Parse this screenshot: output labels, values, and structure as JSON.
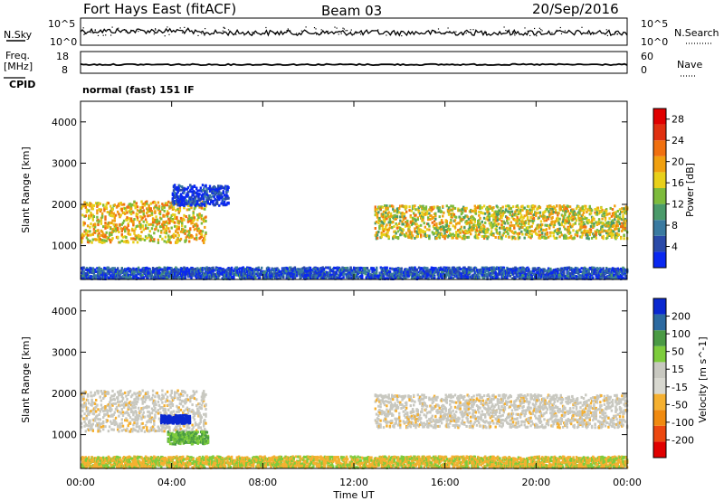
{
  "header": {
    "station": "Fort Hays East (fitACF)",
    "beam": "Beam 03",
    "date": "20/Sep/2016"
  },
  "labels": {
    "nsky": "N.Sky",
    "nsearch": "N.Search",
    "freq_line1": "Freq.",
    "freq_line2": "[MHz]",
    "nave": "Nave",
    "cpid": "CPID",
    "mode": "normal (fast) 151 IF",
    "tick_1e5": "10^5",
    "tick_1e0": "10^0",
    "tick_18": "18",
    "tick_8": "8",
    "tick_60": "60",
    "tick_0": "0"
  },
  "colors": {
    "power": [
      "#0a28f0",
      "#2a4aa8",
      "#3a7aa0",
      "#4a9a6a",
      "#7dbb3c",
      "#e8d01a",
      "#f0a010",
      "#f07010",
      "#e03010",
      "#e00000"
    ],
    "velocity": [
      "#e00000",
      "#ec4810",
      "#f08a10",
      "#f5b030",
      "#d8d8d0",
      "#c8c8c0",
      "#7dcc3c",
      "#4a9a44",
      "#2c6aa0",
      "#0a28d0"
    ],
    "ground_scatter": "#c8c8c0"
  },
  "chart_data": [
    {
      "type": "line",
      "name": "N.Sky",
      "ylabel": "N.Sky",
      "ylim": [
        0,
        5
      ],
      "y_scale": "log10",
      "y_ticks": [
        "10^0",
        "10^5"
      ],
      "x_range_hours": [
        0,
        24
      ],
      "approx_level_log10": 2.3,
      "series": [
        {
          "name": "N.Sky",
          "style": "solid"
        },
        {
          "name": "N.Search",
          "style": "dotted"
        }
      ]
    },
    {
      "type": "line",
      "name": "Freq / Nave",
      "ylabel": "Freq. [MHz]",
      "ylim_freq": [
        8,
        18
      ],
      "ylim_nave": [
        0,
        60
      ],
      "approx_freq_mhz": 12.0,
      "x_range_hours": [
        0,
        24
      ]
    },
    {
      "type": "heatmap",
      "title": "Power",
      "ylabel": "Slant Range [km]",
      "colorbar_label": "Power [dB]",
      "colorbar_ticks": [
        4,
        8,
        12,
        16,
        20,
        24,
        28
      ],
      "colorbar_range": [
        0,
        30
      ],
      "x_range_hours": [
        0,
        24
      ],
      "y_range_km": [
        180,
        4500
      ],
      "y_ticks": [
        1000,
        2000,
        3000,
        4000
      ],
      "scatter_bands": [
        {
          "t_start": 0.0,
          "t_end": 5.5,
          "range_km": [
            1100,
            2100
          ],
          "peak_db": 24
        },
        {
          "t_start": 4.0,
          "t_end": 6.5,
          "range_km": [
            2000,
            2500
          ],
          "peak_db": 8
        },
        {
          "t_start": 12.9,
          "t_end": 24.0,
          "range_km": [
            1200,
            2000
          ],
          "peak_db": 22
        },
        {
          "t_start": 0.0,
          "t_end": 24.0,
          "range_km": [
            200,
            500
          ],
          "peak_db": 10
        }
      ]
    },
    {
      "type": "heatmap",
      "title": "Velocity",
      "ylabel": "Slant Range [km]",
      "colorbar_label": "Velocity [m s^-1]",
      "colorbar_ticks": [
        -200,
        -100,
        -50,
        -15,
        15,
        50,
        100,
        200
      ],
      "x_range_hours": [
        0,
        24
      ],
      "x_ticks": [
        "00:00",
        "04:00",
        "08:00",
        "12:00",
        "16:00",
        "20:00",
        "00:00"
      ],
      "xlabel": "Time UT",
      "y_range_km": [
        180,
        4500
      ],
      "y_ticks": [
        1000,
        2000,
        3000,
        4000
      ],
      "scatter_bands": [
        {
          "t_start": 0.0,
          "t_end": 5.5,
          "range_km": [
            1100,
            2100
          ],
          "velocity": "ground scatter"
        },
        {
          "t_start": 3.5,
          "t_end": 4.8,
          "range_km": [
            1300,
            1500
          ],
          "velocity": 200
        },
        {
          "t_start": 3.8,
          "t_end": 5.6,
          "range_km": [
            800,
            1100
          ],
          "velocity": 60
        },
        {
          "t_start": 12.9,
          "t_end": 24.0,
          "range_km": [
            1200,
            2000
          ],
          "velocity": "ground scatter"
        },
        {
          "t_start": 0.0,
          "t_end": 24.0,
          "range_km": [
            200,
            500
          ],
          "velocity": -30
        }
      ]
    }
  ]
}
